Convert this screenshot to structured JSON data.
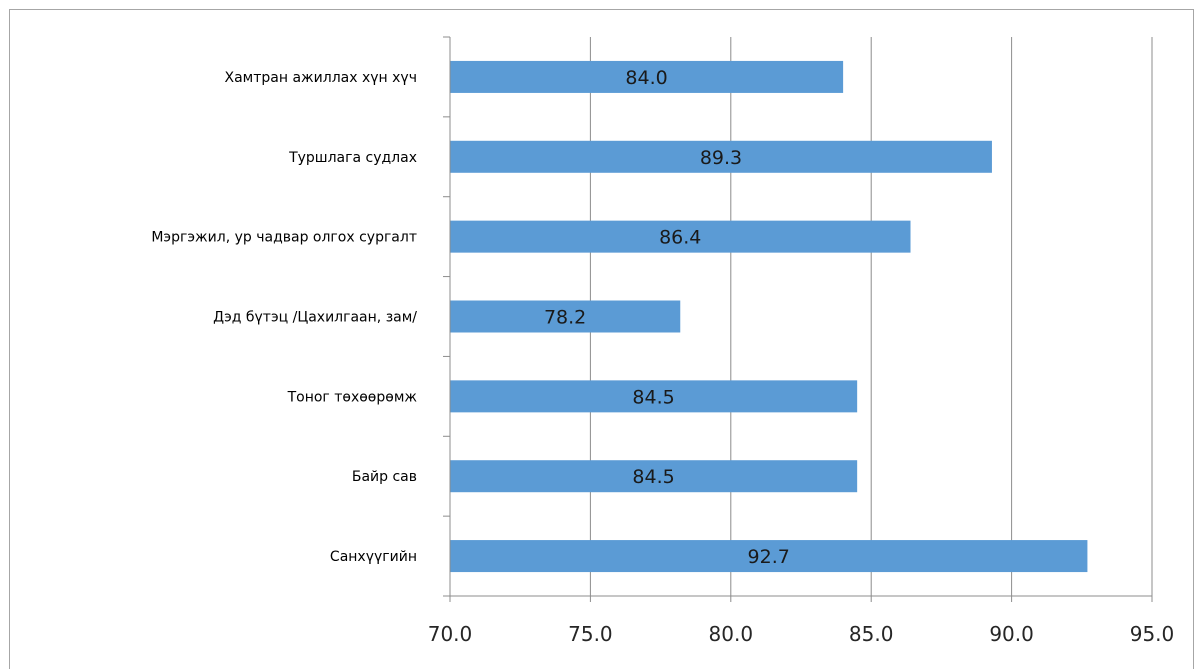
{
  "chart_data": {
    "type": "bar",
    "orientation": "horizontal",
    "categories": [
      "Хамтран ажиллах хүн хүч",
      "Туршлага судлах",
      "Мэргэжил, ур чадвар олгох сургалт",
      "Дэд бүтэц /Цахилгаан, зам/",
      "Тоног төхөөрөмж",
      "Байр сав",
      "Санхүүгийн"
    ],
    "values": [
      84.0,
      89.3,
      86.4,
      78.2,
      84.5,
      84.5,
      92.7
    ],
    "data_labels": [
      "84.0",
      "89.3",
      "86.4",
      "78.2",
      "84.5",
      "84.5",
      "92.7"
    ],
    "xlim": [
      70,
      95
    ],
    "x_ticks": [
      70,
      75,
      80,
      85,
      90,
      95
    ],
    "x_tick_labels": [
      "70.0",
      "75.0",
      "80.0",
      "85.0",
      "90.0",
      "95.0"
    ],
    "grid": true,
    "legend": "none",
    "bar_color": "#5b9bd5",
    "title": "",
    "xlabel": "",
    "ylabel": ""
  }
}
